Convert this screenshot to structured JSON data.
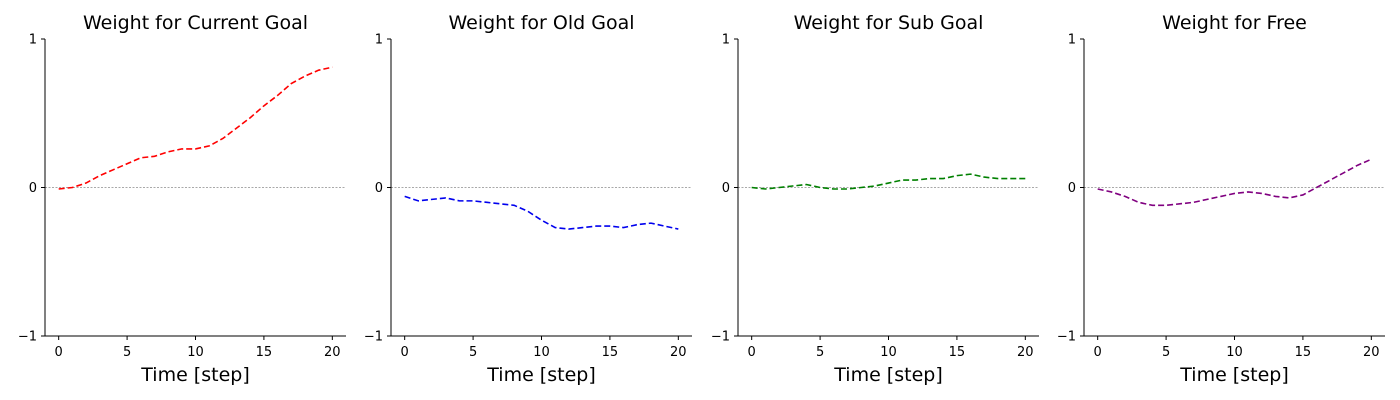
{
  "chart_data": [
    {
      "type": "line",
      "title": "Weight for Current Goal",
      "xlabel": "Time [step]",
      "ylabel": "",
      "xlim": [
        -1,
        21
      ],
      "ylim": [
        -1,
        1
      ],
      "xticks": [
        0,
        5,
        10,
        15,
        20
      ],
      "yticks": [
        -1,
        0,
        1
      ],
      "zero_line": true,
      "color": "#ff0000",
      "x": [
        0,
        1,
        2,
        3,
        4,
        5,
        6,
        7,
        8,
        9,
        10,
        11,
        12,
        13,
        14,
        15,
        16,
        17,
        18,
        19,
        20
      ],
      "y": [
        -0.01,
        0.0,
        0.03,
        0.08,
        0.12,
        0.16,
        0.2,
        0.21,
        0.24,
        0.26,
        0.26,
        0.28,
        0.33,
        0.4,
        0.47,
        0.55,
        0.62,
        0.7,
        0.75,
        0.79,
        0.81
      ]
    },
    {
      "type": "line",
      "title": "Weight for Old Goal",
      "xlabel": "Time [step]",
      "ylabel": "",
      "xlim": [
        -1,
        21
      ],
      "ylim": [
        -1,
        1
      ],
      "xticks": [
        0,
        5,
        10,
        15,
        20
      ],
      "yticks": [
        -1,
        0,
        1
      ],
      "zero_line": true,
      "color": "#0000ee",
      "x": [
        0,
        1,
        2,
        3,
        4,
        5,
        6,
        7,
        8,
        9,
        10,
        11,
        12,
        13,
        14,
        15,
        16,
        17,
        18,
        19,
        20
      ],
      "y": [
        -0.06,
        -0.09,
        -0.08,
        -0.07,
        -0.09,
        -0.09,
        -0.1,
        -0.11,
        -0.12,
        -0.16,
        -0.22,
        -0.27,
        -0.28,
        -0.27,
        -0.26,
        -0.26,
        -0.27,
        -0.25,
        -0.24,
        -0.26,
        -0.28
      ]
    },
    {
      "type": "line",
      "title": "Weight for Sub Goal",
      "xlabel": "Time [step]",
      "ylabel": "",
      "xlim": [
        -1,
        21
      ],
      "ylim": [
        -1,
        1
      ],
      "xticks": [
        0,
        5,
        10,
        15,
        20
      ],
      "yticks": [
        -1,
        0,
        1
      ],
      "zero_line": true,
      "color": "#008000",
      "x": [
        0,
        1,
        2,
        3,
        4,
        5,
        6,
        7,
        8,
        9,
        10,
        11,
        12,
        13,
        14,
        15,
        16,
        17,
        18,
        19,
        20
      ],
      "y": [
        0.0,
        -0.01,
        0.0,
        0.01,
        0.02,
        0.0,
        -0.01,
        -0.01,
        0.0,
        0.01,
        0.03,
        0.05,
        0.05,
        0.06,
        0.06,
        0.08,
        0.09,
        0.07,
        0.06,
        0.06,
        0.06
      ]
    },
    {
      "type": "line",
      "title": "Weight for Free",
      "xlabel": "Time [step]",
      "ylabel": "",
      "xlim": [
        -1,
        21
      ],
      "ylim": [
        -1,
        1
      ],
      "xticks": [
        0,
        5,
        10,
        15,
        20
      ],
      "yticks": [
        -1,
        0,
        1
      ],
      "zero_line": true,
      "color": "#800080",
      "x": [
        0,
        1,
        2,
        3,
        4,
        5,
        6,
        7,
        8,
        9,
        10,
        11,
        12,
        13,
        14,
        15,
        16,
        17,
        18,
        19,
        20
      ],
      "y": [
        -0.01,
        -0.03,
        -0.06,
        -0.1,
        -0.12,
        -0.12,
        -0.11,
        -0.1,
        -0.08,
        -0.06,
        -0.04,
        -0.03,
        -0.04,
        -0.06,
        -0.07,
        -0.05,
        0.0,
        0.05,
        0.1,
        0.15,
        0.19
      ]
    }
  ]
}
